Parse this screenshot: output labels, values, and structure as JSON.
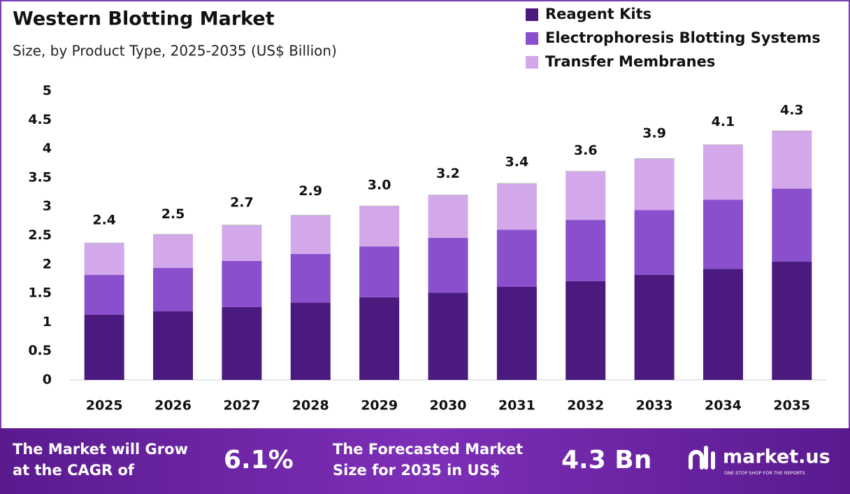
{
  "chart_data": {
    "type": "stacked_bar",
    "title": "Western Blotting Market",
    "subtitle": "Size, by Product Type, 2025-2035 (US$ Billion)",
    "categories": [
      "2025",
      "2026",
      "2027",
      "2028",
      "2029",
      "2030",
      "2031",
      "2032",
      "2033",
      "2034",
      "2035"
    ],
    "series": [
      {
        "name": "Reagent Kits",
        "color": "#4b1a7e",
        "values": [
          1.13,
          1.19,
          1.26,
          1.34,
          1.43,
          1.51,
          1.61,
          1.71,
          1.82,
          1.92,
          2.05
        ]
      },
      {
        "name": "Electrophoresis Blotting Systems",
        "color": "#8a4fcc",
        "values": [
          0.69,
          0.75,
          0.8,
          0.84,
          0.88,
          0.95,
          0.99,
          1.06,
          1.12,
          1.2,
          1.26
        ]
      },
      {
        "name": "Transfer Membranes",
        "color": "#d3a8ea",
        "values": [
          0.55,
          0.58,
          0.62,
          0.67,
          0.7,
          0.74,
          0.8,
          0.84,
          0.89,
          0.95,
          1.0
        ]
      }
    ],
    "totals": {
      "values": [
        2.4,
        2.5,
        2.7,
        2.9,
        3.0,
        3.2,
        3.4,
        3.6,
        3.9,
        4.1,
        4.3
      ],
      "value_labels": [
        "2.4",
        "2.5",
        "2.7",
        "2.9",
        "3.0",
        "3.2",
        "3.4",
        "3.6",
        "3.9",
        "4.1",
        "4.3"
      ]
    },
    "ylim": [
      0,
      5
    ],
    "yticks": [
      0,
      0.5,
      1,
      1.5,
      2,
      2.5,
      3,
      3.5,
      4,
      4.5,
      5
    ],
    "grid": false,
    "legend": "top-right"
  },
  "banner": {
    "cagr_text": [
      "The Market will Grow",
      "at the CAGR of"
    ],
    "cagr_value": "6.1%",
    "forecast_text": [
      "The Forecasted Market",
      "Size for 2035 in US$"
    ],
    "forecast_value": "4.3 Bn",
    "logo": "market.us",
    "tagline": "ONE STOP SHOP FOR THE REPORTS"
  }
}
